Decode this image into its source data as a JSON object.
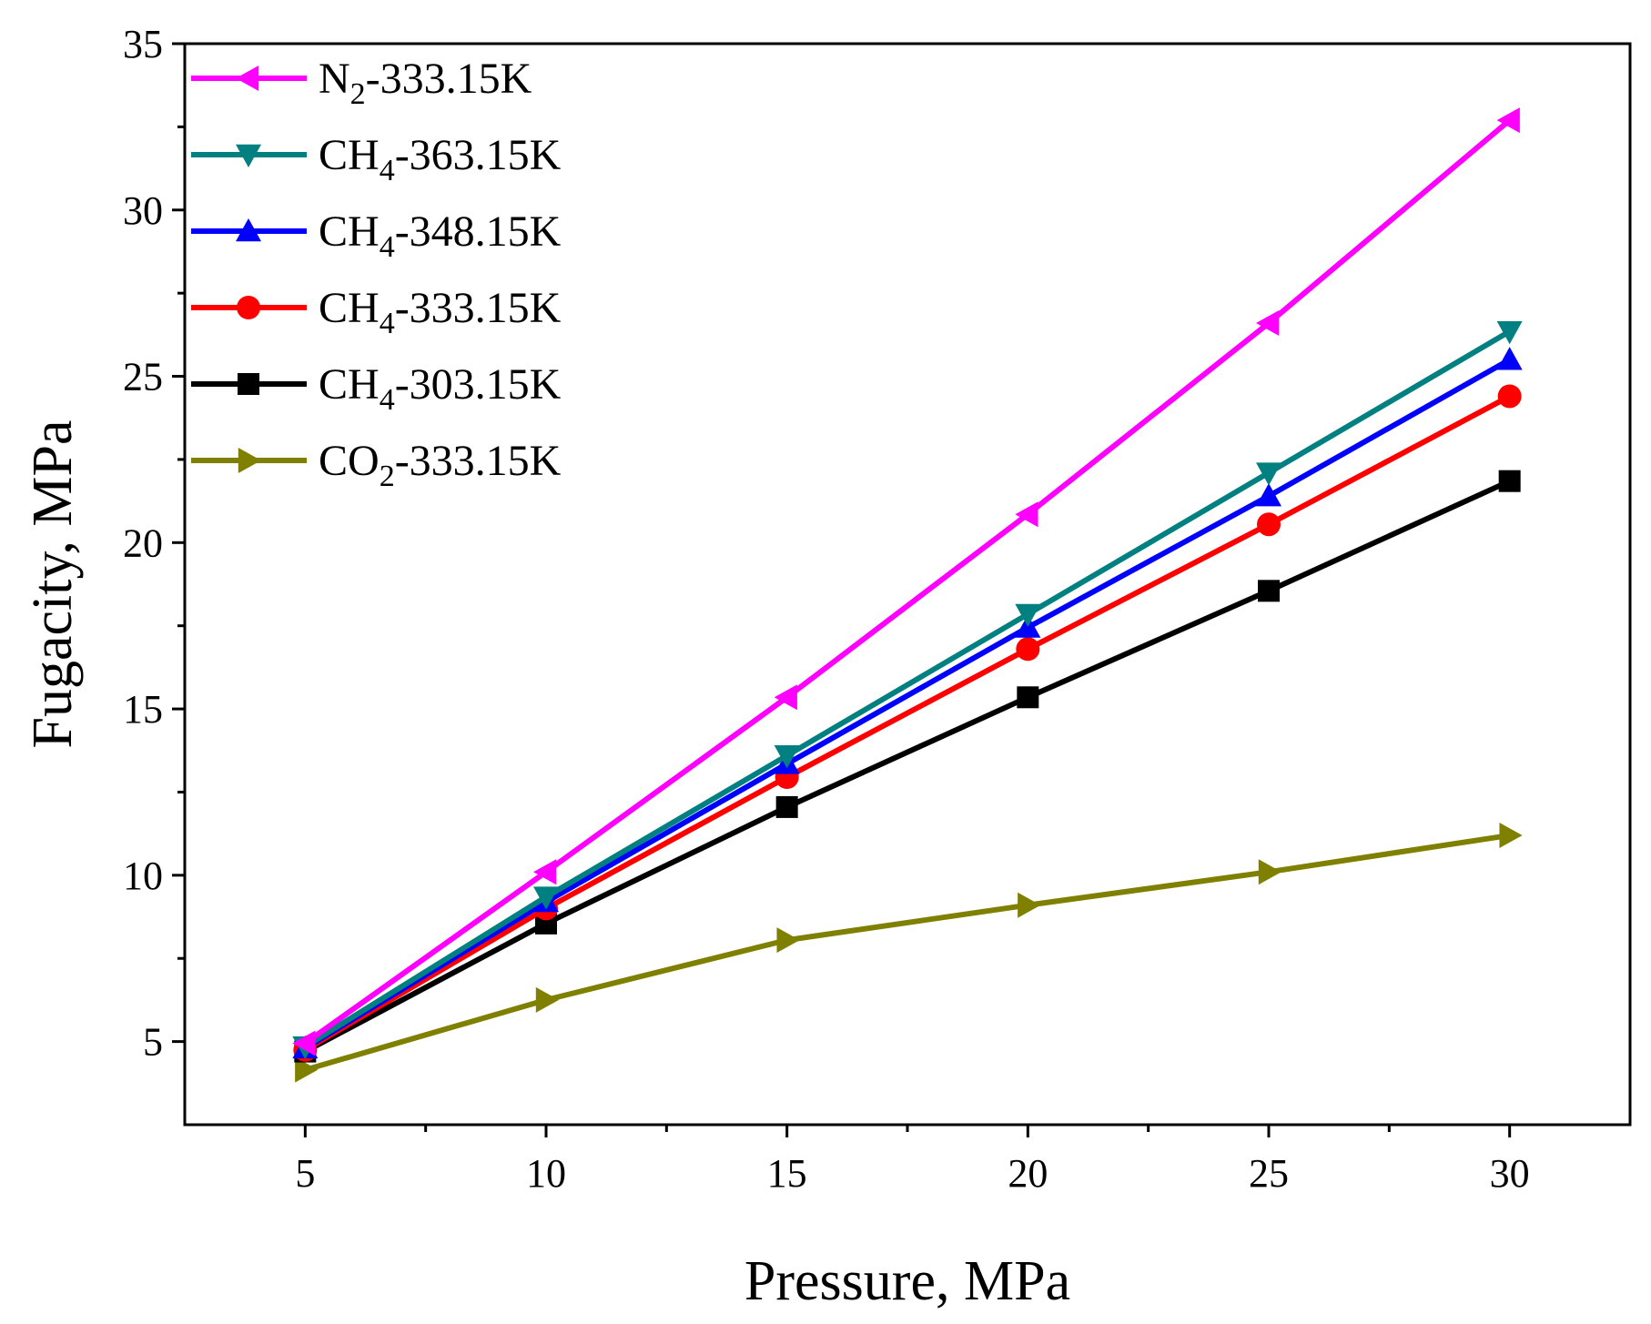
{
  "chart_data": {
    "type": "line",
    "xlabel": "Pressure, MPa",
    "ylabel": "Fugacity, MPa",
    "xlim": [
      2.5,
      32.5
    ],
    "ylim": [
      2.5,
      35
    ],
    "x_ticks": [
      5,
      10,
      15,
      20,
      25,
      30
    ],
    "y_ticks": [
      5,
      10,
      15,
      20,
      25,
      30,
      35
    ],
    "x_tick_labels": [
      "5",
      "10",
      "15",
      "20",
      "25",
      "30"
    ],
    "y_tick_labels": [
      "5",
      "10",
      "15",
      "20",
      "25",
      "30",
      "35"
    ],
    "grid": false,
    "legend_position": "top-left",
    "x": [
      5,
      10,
      15,
      20,
      25,
      30
    ],
    "series": [
      {
        "key": "n2-333",
        "base": "N",
        "sub": "2",
        "suffix": "-333.15K",
        "color": "#ff00ff",
        "marker": "triangle-left",
        "values": [
          4.95,
          10.1,
          15.35,
          20.85,
          26.6,
          32.7
        ]
      },
      {
        "key": "ch4-363",
        "base": "CH",
        "sub": "4",
        "suffix": "-363.15K",
        "color": "#008080",
        "marker": "triangle-down",
        "values": [
          4.85,
          9.35,
          13.6,
          17.85,
          22.1,
          26.35
        ]
      },
      {
        "key": "ch4-348",
        "base": "CH",
        "sub": "4",
        "suffix": "-348.15K",
        "color": "#0000ff",
        "marker": "triangle-up",
        "values": [
          4.8,
          9.2,
          13.35,
          17.45,
          21.4,
          25.5
        ]
      },
      {
        "key": "ch4-333",
        "base": "CH",
        "sub": "4",
        "suffix": "-333.15K",
        "color": "#ff0000",
        "marker": "circle",
        "values": [
          4.75,
          9.0,
          12.95,
          16.8,
          20.55,
          24.4
        ]
      },
      {
        "key": "ch4-303",
        "base": "CH",
        "sub": "4",
        "suffix": "-303.15K",
        "color": "#000000",
        "marker": "square",
        "values": [
          4.7,
          8.55,
          12.05,
          15.35,
          18.55,
          21.85
        ]
      },
      {
        "key": "co2-333",
        "base": "CO",
        "sub": "2",
        "suffix": "-333.15K",
        "color": "#808000",
        "marker": "triangle-right",
        "values": [
          4.15,
          6.25,
          8.05,
          9.1,
          10.1,
          11.2
        ]
      }
    ]
  }
}
